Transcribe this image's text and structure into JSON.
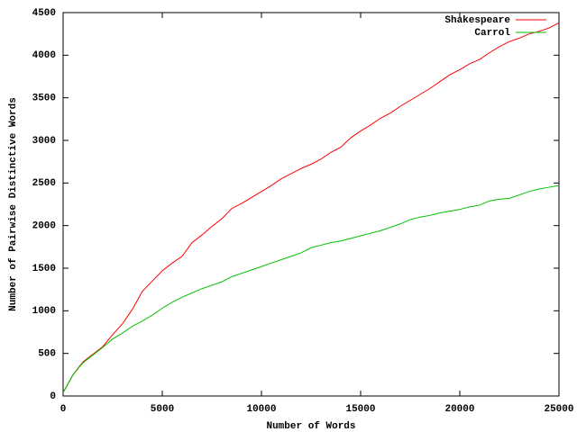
{
  "chart_data": {
    "type": "line",
    "xlabel": "Number of Words",
    "ylabel": "Number of Pairwise Distinctive Words",
    "x": [
      0,
      500,
      1000,
      1500,
      2000,
      2500,
      3000,
      3500,
      4000,
      4500,
      5000,
      5500,
      6000,
      6500,
      7000,
      7500,
      8000,
      8500,
      9000,
      9500,
      10000,
      10500,
      11000,
      11500,
      12000,
      12500,
      13000,
      13500,
      14000,
      14500,
      15000,
      15500,
      16000,
      16500,
      17000,
      17500,
      18000,
      18500,
      19000,
      19500,
      20000,
      20500,
      21000,
      21500,
      22000,
      22500,
      23000,
      23500,
      24000,
      24500,
      25000
    ],
    "series": [
      {
        "name": "Shakespeare",
        "color": "#ff0000",
        "values": [
          40,
          250,
          400,
          490,
          580,
          720,
          850,
          1020,
          1230,
          1350,
          1470,
          1560,
          1640,
          1800,
          1890,
          1990,
          2080,
          2200,
          2260,
          2330,
          2400,
          2470,
          2550,
          2610,
          2670,
          2720,
          2780,
          2860,
          2920,
          3030,
          3110,
          3180,
          3260,
          3320,
          3400,
          3470,
          3540,
          3610,
          3690,
          3770,
          3830,
          3900,
          3950,
          4030,
          4100,
          4160,
          4200,
          4250,
          4280,
          4320,
          4380
        ]
      },
      {
        "name": "Carrol",
        "color": "#00c000",
        "values": [
          40,
          250,
          390,
          480,
          570,
          670,
          740,
          820,
          880,
          950,
          1030,
          1100,
          1160,
          1210,
          1260,
          1300,
          1340,
          1400,
          1440,
          1480,
          1520,
          1560,
          1600,
          1640,
          1680,
          1740,
          1770,
          1800,
          1820,
          1850,
          1880,
          1910,
          1940,
          1980,
          2020,
          2070,
          2100,
          2120,
          2150,
          2170,
          2190,
          2220,
          2240,
          2290,
          2310,
          2320,
          2360,
          2400,
          2430,
          2450,
          2470
        ]
      }
    ],
    "xlim": [
      0,
      25000
    ],
    "xticks": [
      0,
      5000,
      10000,
      15000,
      20000,
      25000
    ],
    "ylim": [
      0,
      4500
    ],
    "yticks": [
      0,
      500,
      1000,
      1500,
      2000,
      2500,
      3000,
      3500,
      4000,
      4500
    ],
    "legend": "top-right"
  }
}
